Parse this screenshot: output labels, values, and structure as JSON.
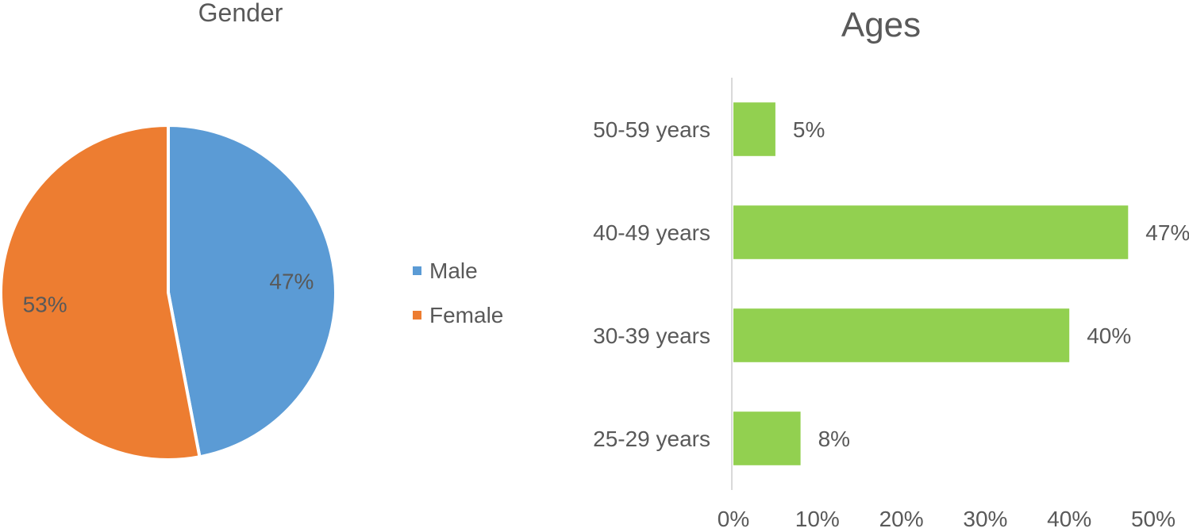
{
  "chart_data": [
    {
      "type": "pie",
      "title": "Gender",
      "categories": [
        "Male",
        "Female"
      ],
      "values": [
        47,
        53
      ],
      "value_labels": [
        "47%",
        "53%"
      ],
      "colors": [
        "#5B9BD5",
        "#ED7D31"
      ],
      "legend_position": "right"
    },
    {
      "type": "bar",
      "orientation": "horizontal",
      "title": "Ages",
      "categories": [
        "50-59 years",
        "40-49 years",
        "30-39 years",
        "25-29 years"
      ],
      "values": [
        5,
        47,
        40,
        8
      ],
      "value_labels": [
        "5%",
        "47%",
        "40%",
        "8%"
      ],
      "xlim": [
        0,
        50
      ],
      "x_ticks": [
        "0%",
        "10%",
        "20%",
        "30%",
        "40%",
        "50%"
      ],
      "bar_color": "#92D050",
      "grid": false
    }
  ]
}
